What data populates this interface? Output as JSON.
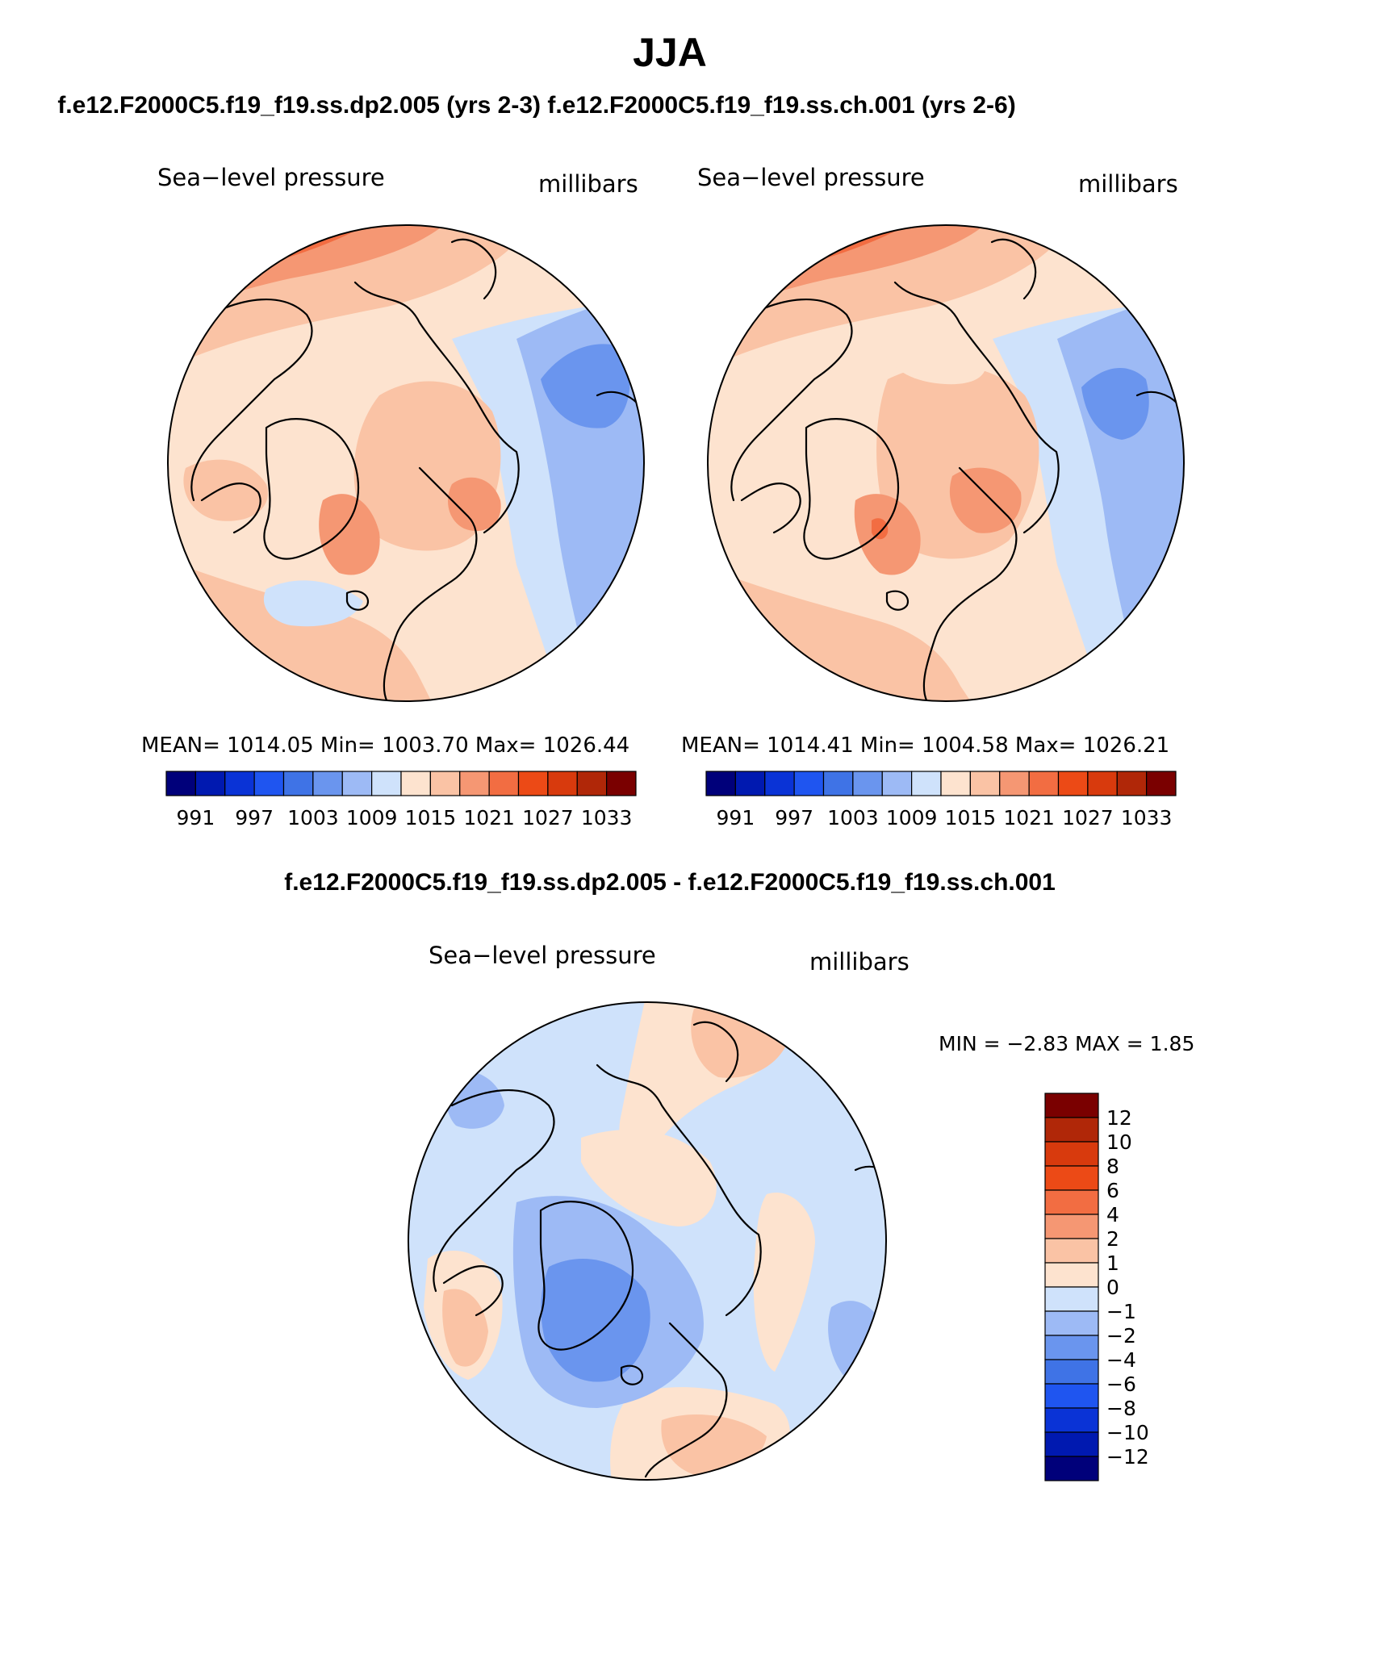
{
  "title": "JJA",
  "case_header": "f.e12.F2000C5.f19_f19.ss.dp2.005 (yrs 2-3)  f.e12.F2000C5.f19_f19.ss.ch.001 (yrs 2-6)",
  "diff_header": "f.e12.F2000C5.f19_f19.ss.dp2.005 - f.e12.F2000C5.f19_f19.ss.ch.001",
  "panels": [
    {
      "field": "Sea−level pressure",
      "units": "millibars",
      "stats": "MEAN=  1014.05   Min=  1003.70   Max=  1026.44"
    },
    {
      "field": "Sea−level pressure",
      "units": "millibars",
      "stats": "MEAN=  1014.41   Min=  1004.58   Max=  1026.21"
    }
  ],
  "diff_panel": {
    "field": "Sea−level pressure",
    "units": "millibars",
    "minmax": "MIN =   −2.83  MAX =     1.85"
  },
  "abs_colorbar": {
    "labels": [
      "991",
      "997",
      "1003",
      "1009",
      "1015",
      "1021",
      "1027",
      "1033"
    ],
    "colors": [
      "#00007a",
      "#0019b0",
      "#0a33d6",
      "#1f55f0",
      "#3f73e6",
      "#6a95ee",
      "#9dbaf5",
      "#cfe2fb",
      "#fde3cf",
      "#fac3a5",
      "#f59773",
      "#f26d42",
      "#ec4a16",
      "#d83a0d",
      "#b02708",
      "#7a0000"
    ]
  },
  "diff_colorbar": {
    "labels": [
      "12",
      "10",
      "8",
      "6",
      "4",
      "2",
      "1",
      "0",
      "−1",
      "−2",
      "−4",
      "−6",
      "−8",
      "−10",
      "−12"
    ],
    "colors": [
      "#7a0000",
      "#b02708",
      "#d83a0d",
      "#ec4a16",
      "#f26d42",
      "#f59773",
      "#fac3a5",
      "#fde3cf",
      "#cfe2fb",
      "#9dbaf5",
      "#6a95ee",
      "#3f73e6",
      "#1f55f0",
      "#0a33d6",
      "#0019b0",
      "#00007a"
    ]
  },
  "palette": {
    "white": "#ffffff",
    "pale_blue": "#cfe2fb",
    "light_blue": "#9dbaf5",
    "mid_blue": "#6a95ee",
    "cream": "#fde3cf",
    "peach": "#fac3a5",
    "salmon": "#f59773",
    "orange": "#f26d42",
    "red_orange": "#ec4a16"
  }
}
